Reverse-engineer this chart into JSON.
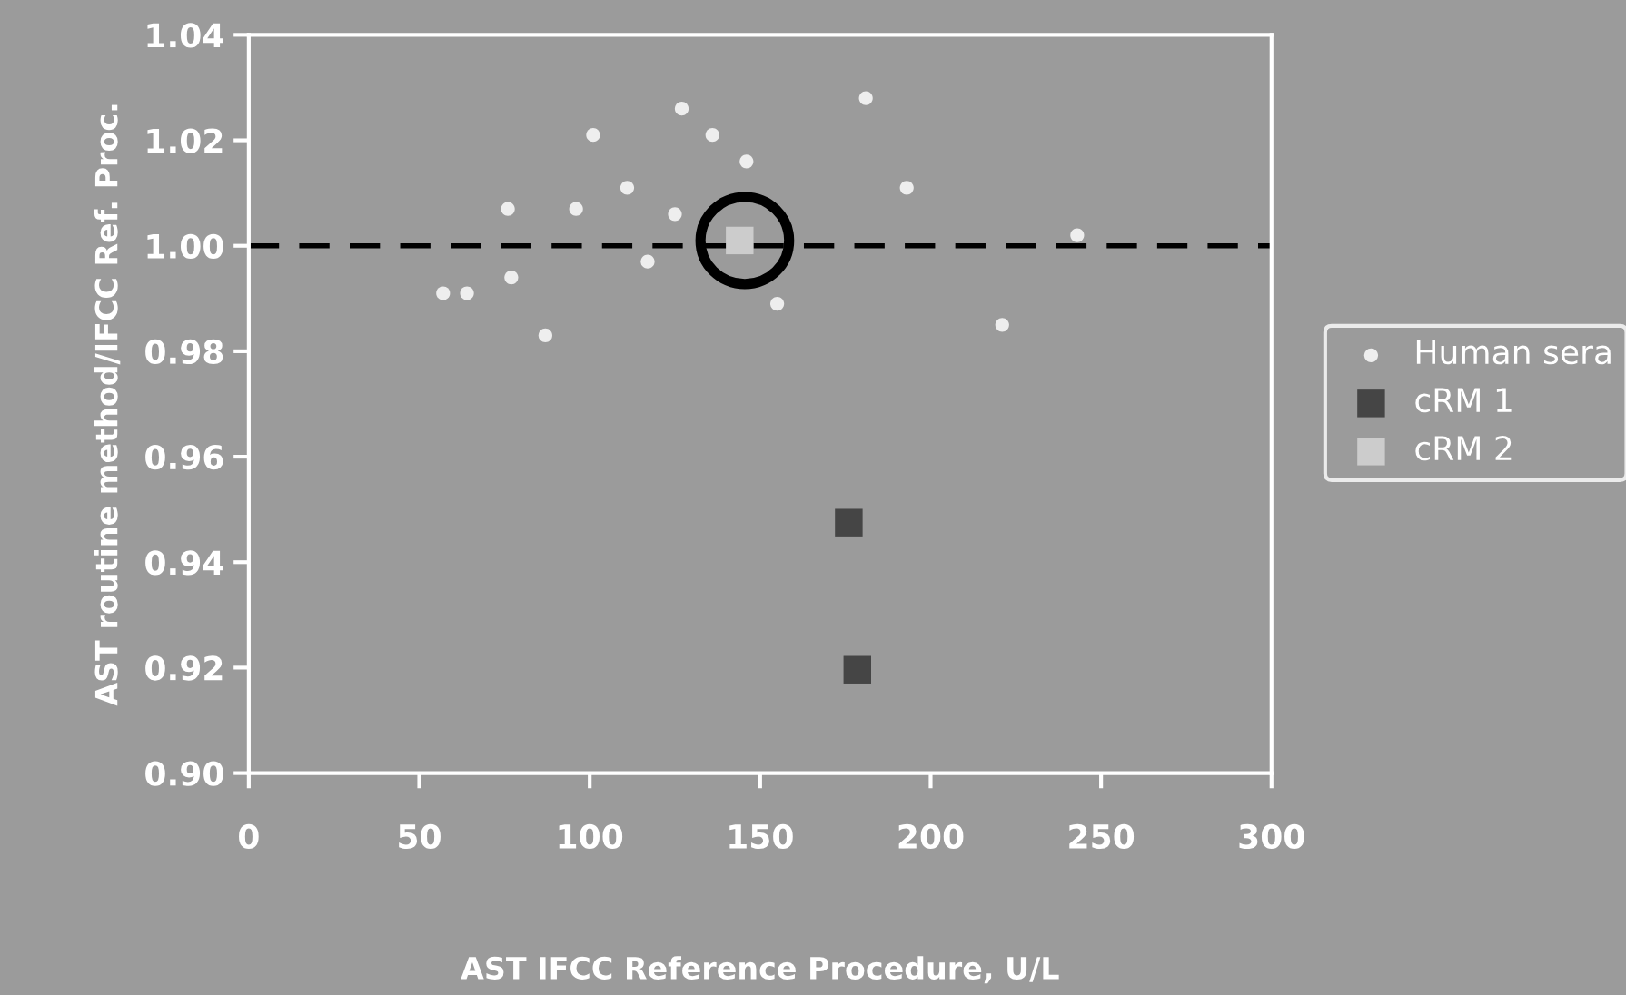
{
  "chart_data": {
    "type": "scatter",
    "xlabel": "AST IFCC Reference Procedure, U/L",
    "ylabel": "AST routine method/IFCC Ref. Proc.",
    "xlim": [
      0,
      300
    ],
    "xticks": [
      0,
      50,
      100,
      150,
      200,
      250,
      300
    ],
    "ylim": [
      0.9,
      1.04
    ],
    "yticks": [
      {
        "value": 0.9,
        "label": "0.90"
      },
      {
        "value": 0.92,
        "label": "0.92"
      },
      {
        "value": 0.94,
        "label": "0.94"
      },
      {
        "value": 0.96,
        "label": "0.96"
      },
      {
        "value": 0.98,
        "label": "0.98"
      },
      {
        "value": 1.0,
        "label": "1.00"
      },
      {
        "value": 1.02,
        "label": "1.02"
      },
      {
        "value": 1.04,
        "label": "1.04"
      }
    ],
    "grid": false,
    "legend": "right",
    "ref_lines": [
      {
        "axis": "y",
        "value": 1.0,
        "color": "#000000",
        "line_style": "dashed"
      }
    ],
    "series": [
      {
        "name": "Human sera",
        "color": "#eeeeee",
        "marker": "circle",
        "x": [
          57,
          64,
          77,
          76,
          87,
          96,
          101,
          111,
          117,
          125,
          127,
          136,
          146,
          155,
          181,
          193,
          243,
          221
        ],
        "values": [
          0.991,
          0.991,
          0.994,
          1.007,
          0.983,
          1.007,
          1.021,
          1.011,
          0.997,
          1.006,
          1.026,
          1.021,
          1.016,
          0.989,
          1.028,
          1.011,
          1.002,
          0.985
        ]
      },
      {
        "name": "cRM 1",
        "color": "#454545",
        "marker": "square",
        "x": [
          176,
          178.5
        ],
        "values": [
          0.9475,
          0.9196
        ]
      },
      {
        "name": "cRM 2",
        "color": "#cccccc",
        "marker": "square",
        "x": [
          144
        ],
        "values": [
          1.001
        ]
      }
    ]
  }
}
